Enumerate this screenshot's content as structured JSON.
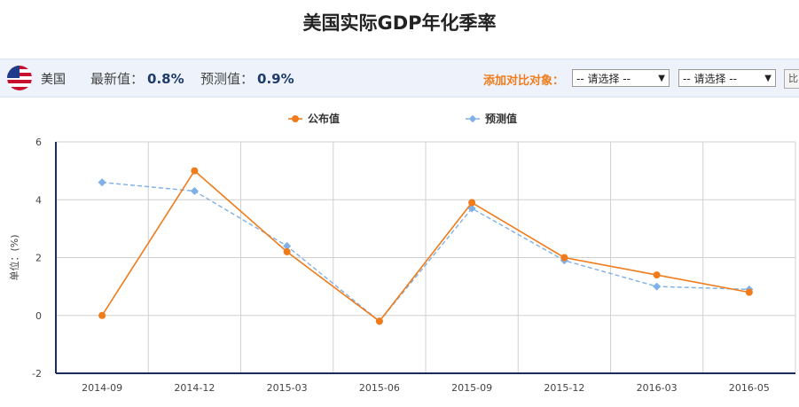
{
  "page": {
    "title": "美国实际GDP年化季率"
  },
  "info_bar": {
    "country": "美国",
    "latest_label": "最新值：",
    "latest_value": "0.8%",
    "forecast_label": "预测值：",
    "forecast_value": "0.9%",
    "compare_label": "添加对比对象：",
    "select_1": "-- 请选择 --",
    "select_2": "-- 请选择 --",
    "edge_button": "比"
  },
  "colors": {
    "published": "#f07b1a",
    "forecast": "#7fb0e6"
  },
  "chart_data": {
    "type": "line",
    "title": "",
    "ylabel": "单位：(%)",
    "xlabel": "",
    "ylim": [
      -2,
      6
    ],
    "yticks": [
      -2,
      0,
      2,
      4,
      6
    ],
    "categories": [
      "2014-09",
      "2014-12",
      "2015-03",
      "2015-06",
      "2015-09",
      "2015-12",
      "2016-03",
      "2016-05"
    ],
    "legend_position": "top-center",
    "grid": true,
    "series": [
      {
        "name": "公布值",
        "style": "solid",
        "values": [
          0.0,
          5.0,
          2.2,
          -0.2,
          3.9,
          2.0,
          1.4,
          0.8
        ]
      },
      {
        "name": "预测值",
        "style": "dashed",
        "values": [
          4.6,
          4.3,
          2.4,
          -0.2,
          3.7,
          1.9,
          1.0,
          0.9
        ]
      }
    ]
  }
}
